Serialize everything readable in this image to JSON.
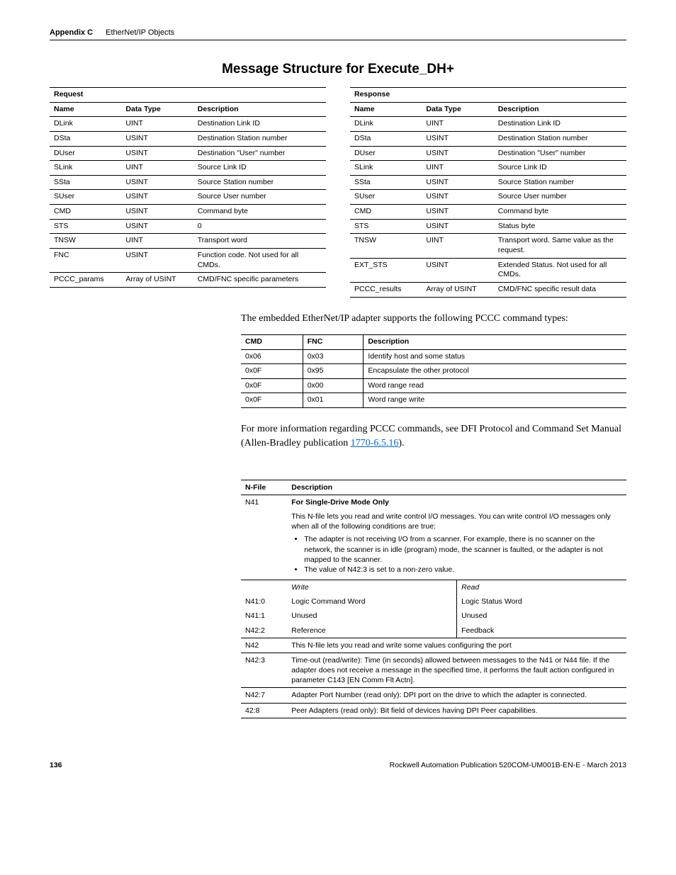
{
  "header": {
    "appendix": "Appendix C",
    "sub": "EtherNet/IP Objects"
  },
  "section_title": "Message Structure for Execute_DH+",
  "request": {
    "title": "Request",
    "cols": [
      "Name",
      "Data Type",
      "Description"
    ],
    "rows": [
      [
        "DLink",
        "UINT",
        "Destination Link ID"
      ],
      [
        "DSta",
        "USINT",
        "Destination Station number"
      ],
      [
        "DUser",
        "USINT",
        "Destination \"User\" number"
      ],
      [
        "SLink",
        "UINT",
        "Source Link ID"
      ],
      [
        "SSta",
        "USINT",
        "Source Station number"
      ],
      [
        "SUser",
        "USINT",
        "Source User number"
      ],
      [
        "CMD",
        "USINT",
        "Command byte"
      ],
      [
        "STS",
        "USINT",
        "0"
      ],
      [
        "TNSW",
        "UINT",
        "Transport word"
      ],
      [
        "FNC",
        "USINT",
        "Function code. Not used for all CMDs."
      ],
      [
        "PCCC_params",
        "Array of USINT",
        "CMD/FNC specific parameters"
      ]
    ]
  },
  "response": {
    "title": "Response",
    "cols": [
      "Name",
      "Data Type",
      "Description"
    ],
    "rows": [
      [
        "DLink",
        "UINT",
        "Destination Link ID"
      ],
      [
        "DSta",
        "USINT",
        "Destination Station number"
      ],
      [
        "DUser",
        "USINT",
        "Destination \"User\" number"
      ],
      [
        "SLink",
        "UINT",
        "Source Link ID"
      ],
      [
        "SSta",
        "USINT",
        "Source Station number"
      ],
      [
        "SUser",
        "USINT",
        "Source User number"
      ],
      [
        "CMD",
        "USINT",
        "Command byte"
      ],
      [
        "STS",
        "USINT",
        "Status byte"
      ],
      [
        "TNSW",
        "UINT",
        "Transport word. Same value as the request."
      ],
      [
        "EXT_STS",
        "USINT",
        "Extended Status. Not used for all CMDs."
      ],
      [
        "PCCC_results",
        "Array of USINT",
        "CMD/FNC specific result data"
      ]
    ]
  },
  "intro_text": "The embedded EtherNet/IP adapter supports the following PCCC command types:",
  "cmd_table": {
    "cols": [
      "CMD",
      "FNC",
      "Description"
    ],
    "rows": [
      [
        "0x06",
        "0x03",
        "Identify host and some status"
      ],
      [
        "0x0F",
        "0x95",
        "Encapsulate the other protocol"
      ],
      [
        "0x0F",
        "0x00",
        "Word range read"
      ],
      [
        "0x0F",
        "0x01",
        "Word range write"
      ]
    ]
  },
  "more_info": {
    "pre": "For more information regarding PCCC commands, see DFI Protocol and Command Set Manual (Allen-Bradley publication ",
    "link": "1770-6.5.16",
    "post": ")."
  },
  "nfile": {
    "cols": [
      "N-File",
      "Description"
    ],
    "n41": {
      "label": "N41",
      "mode_title": "For Single-Drive Mode Only",
      "desc": "This N-file lets you read and write control I/O messages. You can write control I/O messages only when all of the following conditions are true:",
      "bullets": [
        "The adapter is not receiving I/O from a scanner. For example, there is no scanner on the network, the scanner is in idle (program) mode, the scanner is faulted, or the adapter is not mapped to the scanner.",
        "The value of N42:3 is set to a non-zero value."
      ],
      "write": "Write",
      "read": "Read",
      "rows": [
        [
          "N41:0",
          "Logic Command Word",
          "Logic Status Word"
        ],
        [
          "N41:1",
          "Unused",
          "Unused"
        ],
        [
          "N42:2",
          "Reference",
          "Feedback"
        ]
      ]
    },
    "n42": {
      "label": "N42",
      "desc": "This N-file lets you read and write some values configuring the port"
    },
    "n42_3": {
      "label": "N42:3",
      "desc": "Time-out (read/write): Time (in seconds) allowed between messages to the N41 or N44 file. If the adapter does not receive a message in the specified time, it performs the fault action configured in parameter C143 [EN Comm Flt Actn]."
    },
    "n42_7": {
      "label": "N42:7",
      "desc": "Adapter Port Number (read only): DPI port on the drive to which the adapter is connected."
    },
    "n42_8": {
      "label": "42:8",
      "desc": "Peer Adapters (read only): Bit field of devices having DPI Peer capabilities."
    }
  },
  "footer": {
    "page": "136",
    "pub": "Rockwell Automation Publication 520COM-UM001B-EN-E - March 2013"
  }
}
